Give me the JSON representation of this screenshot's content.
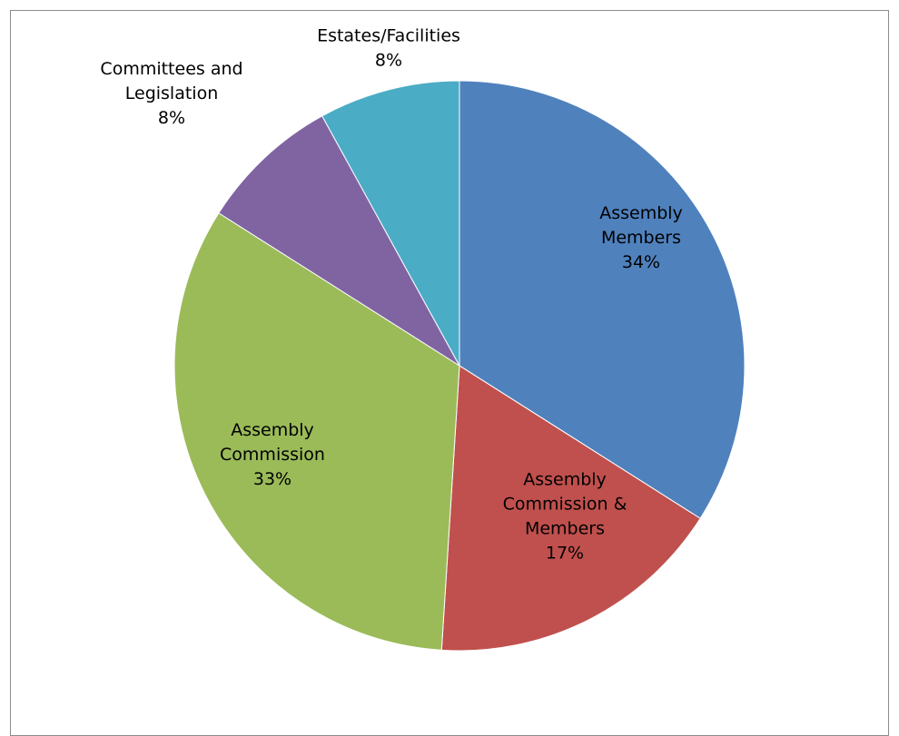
{
  "chart_data": {
    "type": "pie",
    "title": "",
    "slices": [
      {
        "name": "Assembly Members",
        "label_lines": [
          "Assembly",
          "Members",
          "34%"
        ],
        "value": 34,
        "color": "#4f81bd"
      },
      {
        "name": "Assembly Commission & Members",
        "label_lines": [
          "Assembly",
          "Commission &",
          "Members",
          "17%"
        ],
        "value": 17,
        "color": "#c0504d"
      },
      {
        "name": "Assembly Commission",
        "label_lines": [
          "Assembly",
          "Commission",
          "33%"
        ],
        "value": 33,
        "color": "#9bbb59"
      },
      {
        "name": "Committees and Legislation",
        "label_lines": [
          "Committees and",
          "Legislation",
          "8%"
        ],
        "value": 8,
        "color": "#8064a2"
      },
      {
        "name": "Estates/Facilities",
        "label_lines": [
          "Estates/Facilities",
          "8%"
        ],
        "value": 8,
        "color": "#4bacc6"
      }
    ],
    "legend": "none",
    "start_angle": "12 o'clock",
    "direction": "clockwise"
  }
}
